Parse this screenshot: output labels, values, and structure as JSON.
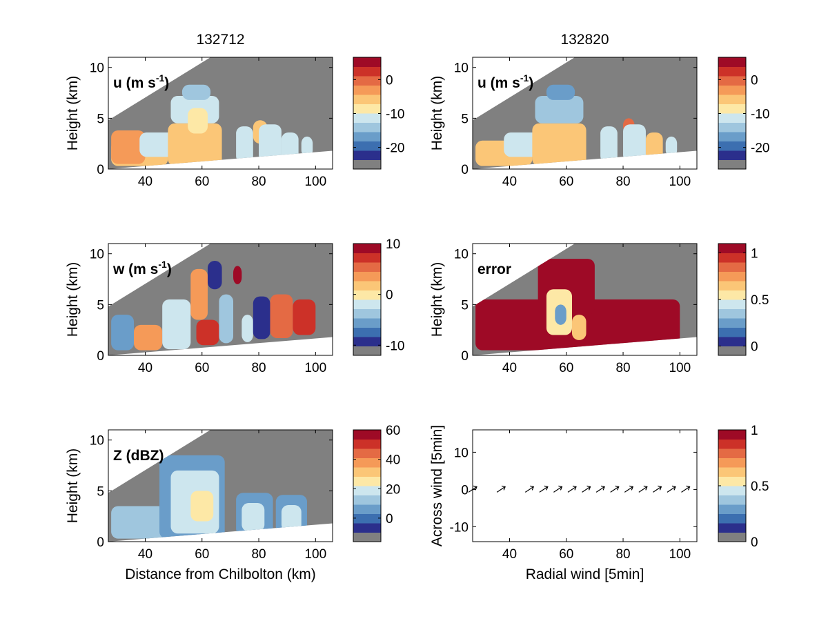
{
  "figure": {
    "column_titles": [
      "132712",
      "132820"
    ],
    "palette": [
      "#808080",
      "#2b2f8c",
      "#3c6fb0",
      "#6a9dc9",
      "#9fc6de",
      "#cde6ee",
      "#fde8a6",
      "#fbc677",
      "#f59a58",
      "#e46a44",
      "#cc3128",
      "#9e0a26"
    ]
  },
  "chart_data": [
    {
      "type": "heatmap",
      "panel": "u",
      "column_title": "132712",
      "label_prefix": "u (m s",
      "label_sup": "-1",
      "label_suffix": ")",
      "xlabel": "",
      "ylabel": "Height (km)",
      "xlim": [
        27,
        106
      ],
      "ylim": [
        0,
        11
      ],
      "xticks": [
        "40",
        "60",
        "80",
        "100"
      ],
      "yticks": [
        "0",
        "5",
        "10"
      ],
      "colorbar": {
        "ticks": [
          "0",
          "-10",
          "-20"
        ],
        "tick_values": [
          0,
          -10,
          -20
        ],
        "cmin": -26.4,
        "cmax": 6.6,
        "bins": 12
      },
      "features": [
        {
          "shape": "rect",
          "x": [
            28,
            48
          ],
          "y": [
            0.3,
            2.8
          ],
          "value": -5
        },
        {
          "shape": "rect",
          "x": [
            28,
            40
          ],
          "y": [
            0.5,
            3.8
          ],
          "value": -4
        },
        {
          "shape": "rect",
          "x": [
            38,
            52
          ],
          "y": [
            1.2,
            3.6
          ],
          "value": -10
        },
        {
          "shape": "rect",
          "x": [
            48,
            67
          ],
          "y": [
            0.3,
            4.5
          ],
          "value": -5
        },
        {
          "shape": "rect",
          "x": [
            49,
            66
          ],
          "y": [
            4.5,
            7.2
          ],
          "value": -12
        },
        {
          "shape": "rect",
          "x": [
            53,
            63
          ],
          "y": [
            6.8,
            8.3
          ],
          "value": -15
        },
        {
          "shape": "rect",
          "x": [
            55,
            62
          ],
          "y": [
            3.5,
            6.0
          ],
          "value": -8
        },
        {
          "shape": "rect",
          "x": [
            72,
            78
          ],
          "y": [
            0.6,
            4.2
          ],
          "value": -12
        },
        {
          "shape": "rect",
          "x": [
            78,
            83
          ],
          "y": [
            2.5,
            4.8
          ],
          "value": -5
        },
        {
          "shape": "rect",
          "x": [
            80,
            88
          ],
          "y": [
            0.7,
            4.4
          ],
          "value": -12
        },
        {
          "shape": "rect",
          "x": [
            88,
            94
          ],
          "y": [
            0.8,
            3.6
          ],
          "value": -12
        },
        {
          "shape": "rect",
          "x": [
            95,
            99
          ],
          "y": [
            1.2,
            3.2
          ],
          "value": -10
        }
      ]
    },
    {
      "type": "heatmap",
      "panel": "u",
      "column_title": "132820",
      "label_prefix": "u (m s",
      "label_sup": "-1",
      "label_suffix": ")",
      "xlabel": "",
      "ylabel": "Height (km)",
      "xlim": [
        27,
        106
      ],
      "ylim": [
        0,
        11
      ],
      "xticks": [
        "40",
        "60",
        "80",
        "100"
      ],
      "yticks": [
        "0",
        "5",
        "10"
      ],
      "colorbar": {
        "ticks": [
          "0",
          "-10",
          "-20"
        ],
        "tick_values": [
          0,
          -10,
          -20
        ],
        "cmin": -26.4,
        "cmax": 6.6,
        "bins": 12
      },
      "features": [
        {
          "shape": "rect",
          "x": [
            28,
            48
          ],
          "y": [
            0.3,
            2.8
          ],
          "value": -6
        },
        {
          "shape": "rect",
          "x": [
            38,
            52
          ],
          "y": [
            1.2,
            3.6
          ],
          "value": -11
        },
        {
          "shape": "rect",
          "x": [
            48,
            67
          ],
          "y": [
            0.3,
            4.5
          ],
          "value": -6
        },
        {
          "shape": "rect",
          "x": [
            49,
            66
          ],
          "y": [
            4.5,
            7.2
          ],
          "value": -13
        },
        {
          "shape": "rect",
          "x": [
            53,
            63
          ],
          "y": [
            6.8,
            8.3
          ],
          "value": -16
        },
        {
          "shape": "rect",
          "x": [
            72,
            78
          ],
          "y": [
            0.6,
            4.2
          ],
          "value": -12
        },
        {
          "shape": "rect",
          "x": [
            80,
            84
          ],
          "y": [
            3.5,
            5.0
          ],
          "value": 0
        },
        {
          "shape": "rect",
          "x": [
            80,
            88
          ],
          "y": [
            0.7,
            4.4
          ],
          "value": -12
        },
        {
          "shape": "rect",
          "x": [
            88,
            94
          ],
          "y": [
            0.8,
            3.6
          ],
          "value": -6
        },
        {
          "shape": "rect",
          "x": [
            95,
            99
          ],
          "y": [
            1.2,
            3.2
          ],
          "value": -10
        }
      ]
    },
    {
      "type": "heatmap",
      "panel": "w",
      "column_title": "132712",
      "label_prefix": "w (m s",
      "label_sup": "-1",
      "label_suffix": ")",
      "xlabel": "",
      "ylabel": "Height (km)",
      "xlim": [
        27,
        106
      ],
      "ylim": [
        0,
        11
      ],
      "xticks": [
        "40",
        "60",
        "80",
        "100"
      ],
      "yticks": [
        "0",
        "5",
        "10"
      ],
      "colorbar": {
        "ticks": [
          "10",
          "0",
          "-10"
        ],
        "tick_values": [
          10,
          0,
          -10
        ],
        "cmin": -12,
        "cmax": 10,
        "bins": 12
      },
      "features": [
        {
          "shape": "rect",
          "x": [
            28,
            36
          ],
          "y": [
            0.5,
            4.0
          ],
          "value": -6
        },
        {
          "shape": "rect",
          "x": [
            36,
            46
          ],
          "y": [
            0.5,
            3.0
          ],
          "value": 4
        },
        {
          "shape": "rect",
          "x": [
            46,
            56
          ],
          "y": [
            0.6,
            5.5
          ],
          "value": -2
        },
        {
          "shape": "rect",
          "x": [
            56,
            62
          ],
          "y": [
            3.5,
            8.5
          ],
          "value": 3
        },
        {
          "shape": "rect",
          "x": [
            62,
            67
          ],
          "y": [
            6.5,
            9.3
          ],
          "value": -10
        },
        {
          "shape": "rect",
          "x": [
            58,
            66
          ],
          "y": [
            1.0,
            3.5
          ],
          "value": 8
        },
        {
          "shape": "rect",
          "x": [
            66,
            71
          ],
          "y": [
            1.2,
            6.0
          ],
          "value": -4
        },
        {
          "shape": "rect",
          "x": [
            71,
            74
          ],
          "y": [
            7.0,
            8.8
          ],
          "value": 9
        },
        {
          "shape": "rect",
          "x": [
            74,
            78
          ],
          "y": [
            1.3,
            4.0
          ],
          "value": -2
        },
        {
          "shape": "rect",
          "x": [
            78,
            84
          ],
          "y": [
            1.6,
            5.8
          ],
          "value": -10
        },
        {
          "shape": "rect",
          "x": [
            84,
            92
          ],
          "y": [
            1.7,
            6.0
          ],
          "value": 5
        },
        {
          "shape": "rect",
          "x": [
            92,
            100
          ],
          "y": [
            2.0,
            5.5
          ],
          "value": 7
        }
      ]
    },
    {
      "type": "heatmap",
      "panel": "error",
      "column_title": "132820",
      "label_prefix": "error",
      "label_sup": "",
      "label_suffix": "",
      "xlabel": "",
      "ylabel": "Height (km)",
      "xlim": [
        27,
        106
      ],
      "ylim": [
        0,
        11
      ],
      "xticks": [
        "40",
        "60",
        "80",
        "100"
      ],
      "yticks": [
        "0",
        "5",
        "10"
      ],
      "colorbar": {
        "ticks": [
          "1",
          "0.5",
          "0"
        ],
        "tick_values": [
          1,
          0.5,
          0
        ],
        "cmin": -0.1,
        "cmax": 1.1,
        "bins": 12
      },
      "features": [
        {
          "shape": "rect",
          "x": [
            28,
            100
          ],
          "y": [
            0.5,
            5.5
          ],
          "value": 1.05
        },
        {
          "shape": "rect",
          "x": [
            50,
            70
          ],
          "y": [
            4.0,
            9.5
          ],
          "value": 1.05
        },
        {
          "shape": "rect",
          "x": [
            53,
            62
          ],
          "y": [
            2.0,
            6.5
          ],
          "value": 0.55
        },
        {
          "shape": "rect",
          "x": [
            56,
            60
          ],
          "y": [
            3.0,
            5.0
          ],
          "value": 0.25
        },
        {
          "shape": "rect",
          "x": [
            62,
            67
          ],
          "y": [
            1.5,
            4.0
          ],
          "value": 0.7
        }
      ]
    },
    {
      "type": "heatmap",
      "panel": "Z",
      "column_title": "132712",
      "label_prefix": "Z (dBZ)",
      "label_sup": "",
      "label_suffix": "",
      "xlabel": "Distance from Chilbolton (km)",
      "ylabel": "Height (km)",
      "xlim": [
        27,
        106
      ],
      "ylim": [
        0,
        11
      ],
      "xticks": [
        "40",
        "60",
        "80",
        "100"
      ],
      "yticks": [
        "0",
        "5",
        "10"
      ],
      "colorbar": {
        "ticks": [
          "60",
          "40",
          "20",
          "0"
        ],
        "tick_values": [
          60,
          40,
          20,
          0
        ],
        "cmin": -16,
        "cmax": 60,
        "bins": 12
      },
      "features": [
        {
          "shape": "rect",
          "x": [
            28,
            47
          ],
          "y": [
            0.3,
            3.5
          ],
          "value": 14
        },
        {
          "shape": "rect",
          "x": [
            45,
            68
          ],
          "y": [
            0.3,
            8.5
          ],
          "value": 4
        },
        {
          "shape": "rect",
          "x": [
            49,
            66
          ],
          "y": [
            0.8,
            7.0
          ],
          "value": 16
        },
        {
          "shape": "rect",
          "x": [
            56,
            64
          ],
          "y": [
            2.0,
            5.0
          ],
          "value": 26
        },
        {
          "shape": "rect",
          "x": [
            72,
            85
          ],
          "y": [
            0.6,
            4.8
          ],
          "value": 8
        },
        {
          "shape": "rect",
          "x": [
            74,
            82
          ],
          "y": [
            1.0,
            3.8
          ],
          "value": 18
        },
        {
          "shape": "rect",
          "x": [
            86,
            97
          ],
          "y": [
            0.8,
            4.6
          ],
          "value": 6
        },
        {
          "shape": "rect",
          "x": [
            88,
            95
          ],
          "y": [
            1.0,
            3.6
          ],
          "value": 20
        }
      ]
    },
    {
      "type": "scatter",
      "panel": "wind",
      "column_title": "132820",
      "xlabel": "Radial wind [5min]",
      "ylabel": "Across wind [5min]",
      "xlim": [
        27,
        106
      ],
      "ylim": [
        -14,
        16
      ],
      "xticks": [
        "40",
        "60",
        "80",
        "100"
      ],
      "yticks": [
        "-10",
        "0",
        "10"
      ],
      "colorbar": {
        "ticks": [
          "1",
          "0.5",
          "0"
        ],
        "tick_values": [
          1,
          0.5,
          0
        ],
        "cmin": 0,
        "cmax": 1,
        "bins": 12
      },
      "arrows": {
        "x": [
          27,
          37,
          47,
          52,
          57,
          62,
          67,
          72,
          77,
          82,
          87,
          92,
          97,
          102
        ],
        "y": [
          0,
          0,
          0,
          0,
          0,
          0,
          0,
          0,
          0,
          0,
          0,
          0,
          0,
          0
        ]
      }
    }
  ]
}
